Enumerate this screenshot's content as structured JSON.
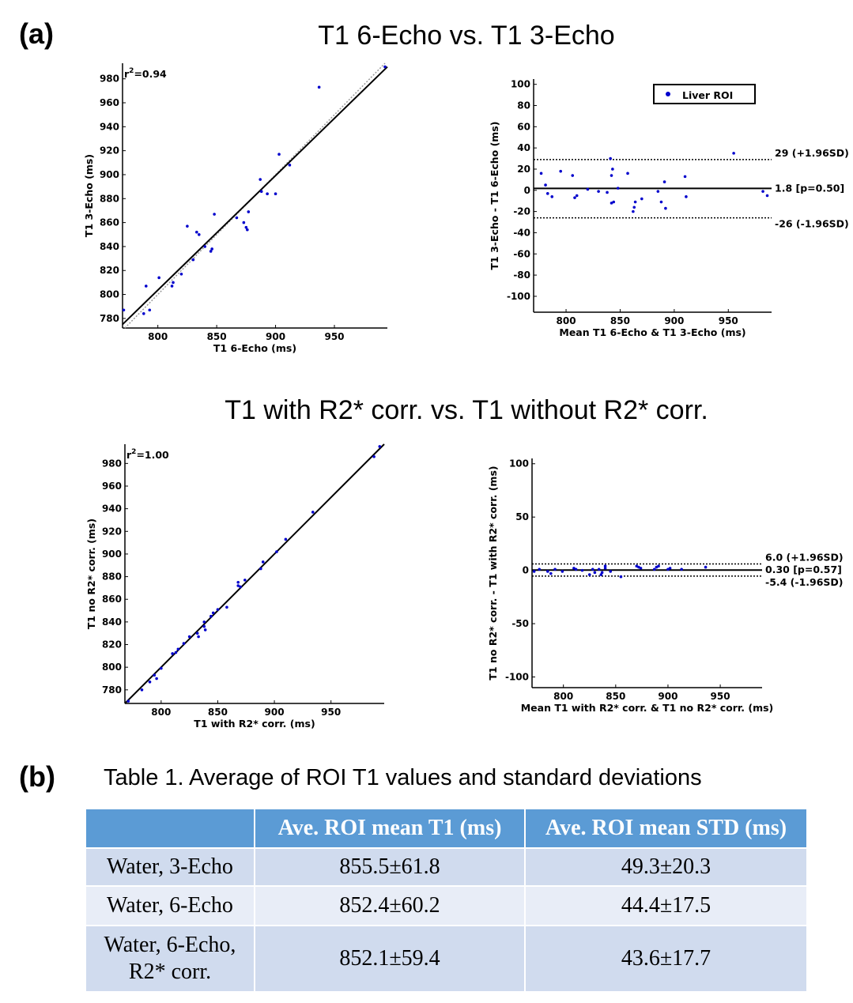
{
  "panel_labels": {
    "a": "(a)",
    "b": "(b)"
  },
  "row_titles": [
    "T1 6-Echo vs. T1 3-Echo",
    "T1 with R2* corr. vs. T1 without R2* corr."
  ],
  "table": {
    "title": "Table 1. Average of ROI T1 values and standard deviations",
    "headers": [
      "",
      "Ave. ROI mean T1 (ms)",
      "Ave. ROI mean STD (ms)"
    ],
    "rows": [
      {
        "label": "Water, 3-Echo",
        "mean_t1": "855.5±61.8",
        "mean_std": "49.3±20.3"
      },
      {
        "label": "Water, 6-Echo",
        "mean_t1": "852.4±60.2",
        "mean_std": "44.4±17.5"
      },
      {
        "label_line1": "Water, 6-Echo,",
        "label_line2": "R2* corr.",
        "mean_t1": "852.1±59.4",
        "mean_std": "43.6±17.7"
      }
    ]
  },
  "colors": {
    "points": "#0000cc",
    "header_bg": "#5b9bd5",
    "row_dark": "#d0dbee",
    "row_light": "#e8edf7"
  },
  "chart_data": [
    {
      "type": "scatter",
      "xlabel": "T1 6-Echo (ms)",
      "ylabel": "T1 3-Echo (ms)",
      "xlim": [
        770,
        995
      ],
      "ylim": [
        772,
        993
      ],
      "xticks": [
        800,
        850,
        900,
        950
      ],
      "yticks": [
        780,
        800,
        820,
        840,
        860,
        880,
        900,
        920,
        940,
        960,
        980
      ],
      "annotation_r2": "0.94",
      "fit_line": [
        [
          770,
          775
        ],
        [
          995,
          990
        ]
      ],
      "identity_line": true,
      "points": [
        [
          771,
          787
        ],
        [
          788,
          784
        ],
        [
          790,
          807
        ],
        [
          793,
          787
        ],
        [
          801,
          814
        ],
        [
          812,
          807
        ],
        [
          813,
          810
        ],
        [
          820,
          817
        ],
        [
          825,
          857
        ],
        [
          830,
          829
        ],
        [
          833,
          852
        ],
        [
          835,
          850
        ],
        [
          840,
          840
        ],
        [
          845,
          836
        ],
        [
          846,
          838
        ],
        [
          848,
          867
        ],
        [
          867,
          864
        ],
        [
          873,
          860
        ],
        [
          875,
          856
        ],
        [
          876,
          854
        ],
        [
          877,
          869
        ],
        [
          887,
          896
        ],
        [
          888,
          886
        ],
        [
          893,
          884
        ],
        [
          900,
          884
        ],
        [
          903,
          917
        ],
        [
          912,
          908
        ],
        [
          937,
          973
        ],
        [
          993,
          990
        ]
      ]
    },
    {
      "type": "scatter",
      "xlabel": "Mean T1 6-Echo & T1 3-Echo (ms)",
      "ylabel": "T1 3-Echo - T1 6-Echo (ms)",
      "xlim": [
        770,
        990
      ],
      "ylim": [
        -115,
        105
      ],
      "xticks": [
        800,
        850,
        900,
        950
      ],
      "yticks": [
        -100,
        -80,
        -60,
        -40,
        -20,
        0,
        20,
        40,
        60,
        80,
        100
      ],
      "legend": {
        "label": "Liver ROI",
        "position": "top-right"
      },
      "mean_line": 1.8,
      "upper_loa": 29,
      "lower_loa": -26,
      "labels": {
        "upper": "29 (+1.96SD)",
        "mean": "1.8 [p=0.50]",
        "lower": "-26 (-1.96SD)"
      },
      "points": [
        [
          777,
          16
        ],
        [
          781,
          5
        ],
        [
          783,
          -3
        ],
        [
          787,
          -6
        ],
        [
          795,
          18
        ],
        [
          806,
          14
        ],
        [
          808,
          -7
        ],
        [
          810,
          -5
        ],
        [
          820,
          1
        ],
        [
          830,
          -1
        ],
        [
          838,
          -2
        ],
        [
          841,
          30
        ],
        [
          842,
          -12
        ],
        [
          842,
          14
        ],
        [
          843,
          20
        ],
        [
          844,
          -11
        ],
        [
          848,
          2
        ],
        [
          857,
          16
        ],
        [
          862,
          -20
        ],
        [
          863,
          -16
        ],
        [
          864,
          -11
        ],
        [
          870,
          -8
        ],
        [
          885,
          -1
        ],
        [
          888,
          -11
        ],
        [
          891,
          8
        ],
        [
          892,
          -17
        ],
        [
          910,
          13
        ],
        [
          911,
          -6
        ],
        [
          955,
          35
        ],
        [
          982,
          -1
        ],
        [
          986,
          -5
        ]
      ]
    },
    {
      "type": "scatter",
      "xlabel": "T1 with R2* corr. (ms)",
      "ylabel": "T1 no R2* corr. (ms)",
      "xlim": [
        768,
        997
      ],
      "ylim": [
        768,
        997
      ],
      "xticks": [
        800,
        850,
        900,
        950
      ],
      "yticks": [
        780,
        800,
        820,
        840,
        860,
        880,
        900,
        920,
        940,
        960,
        980
      ],
      "annotation_r2": "1.00",
      "fit_line": [
        [
          768,
          768
        ],
        [
          997,
          997
        ]
      ],
      "identity_line": true,
      "points": [
        [
          771,
          770
        ],
        [
          783,
          780
        ],
        [
          790,
          787
        ],
        [
          794,
          793
        ],
        [
          796,
          790
        ],
        [
          800,
          799
        ],
        [
          810,
          812
        ],
        [
          813,
          813
        ],
        [
          815,
          816
        ],
        [
          820,
          821
        ],
        [
          825,
          827
        ],
        [
          832,
          830
        ],
        [
          833,
          827
        ],
        [
          838,
          836
        ],
        [
          838,
          840
        ],
        [
          839,
          833
        ],
        [
          844,
          845
        ],
        [
          846,
          848
        ],
        [
          850,
          851
        ],
        [
          858,
          853
        ],
        [
          868,
          872
        ],
        [
          868,
          875
        ],
        [
          870,
          871
        ],
        [
          874,
          877
        ],
        [
          888,
          887
        ],
        [
          890,
          893
        ],
        [
          902,
          902
        ],
        [
          910,
          913
        ],
        [
          934,
          937
        ],
        [
          988,
          986
        ],
        [
          993,
          995
        ]
      ]
    },
    {
      "type": "scatter",
      "xlabel": "Mean T1 with R2* corr. & T1 no R2* corr. (ms)",
      "ylabel": "T1 no R2* corr. - T1 with R2* corr. (ms)",
      "xlim": [
        770,
        990
      ],
      "ylim": [
        -110,
        105
      ],
      "xticks": [
        800,
        850,
        900,
        950
      ],
      "yticks": [
        -100,
        -50,
        0,
        50,
        100
      ],
      "mean_line": 0.3,
      "upper_loa": 6.0,
      "lower_loa": -5.4,
      "labels": {
        "upper": "6.0 (+1.96SD)",
        "mean": "0.30 [p=0.57]",
        "lower": "-5.4 (-1.96SD)"
      },
      "points": [
        [
          772,
          -1
        ],
        [
          777,
          1
        ],
        [
          785,
          -1
        ],
        [
          788,
          -3
        ],
        [
          792,
          1
        ],
        [
          799,
          -1
        ],
        [
          810,
          2
        ],
        [
          812,
          1
        ],
        [
          818,
          0
        ],
        [
          825,
          -4
        ],
        [
          828,
          1
        ],
        [
          830,
          -2
        ],
        [
          834,
          1
        ],
        [
          836,
          -4
        ],
        [
          837,
          -2
        ],
        [
          840,
          2
        ],
        [
          840,
          4
        ],
        [
          845,
          -1
        ],
        [
          855,
          -6
        ],
        [
          870,
          4
        ],
        [
          872,
          3
        ],
        [
          874,
          2
        ],
        [
          887,
          1
        ],
        [
          889,
          3
        ],
        [
          891,
          4
        ],
        [
          900,
          1
        ],
        [
          902,
          2
        ],
        [
          913,
          1
        ],
        [
          936,
          3
        ]
      ]
    }
  ]
}
